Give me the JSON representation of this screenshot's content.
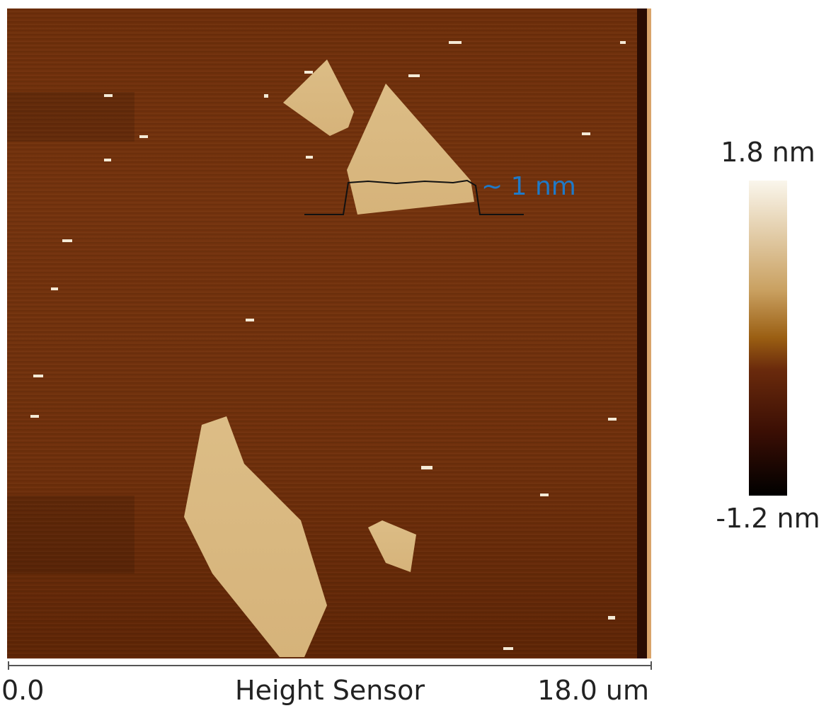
{
  "image": {
    "annotation": "~ 1 nm",
    "scale_bar": {
      "start": "0.0",
      "title": "Height Sensor",
      "end": "18.0 um"
    }
  },
  "color_scale": {
    "max": "1.8 nm",
    "min": "-1.2 nm"
  }
}
